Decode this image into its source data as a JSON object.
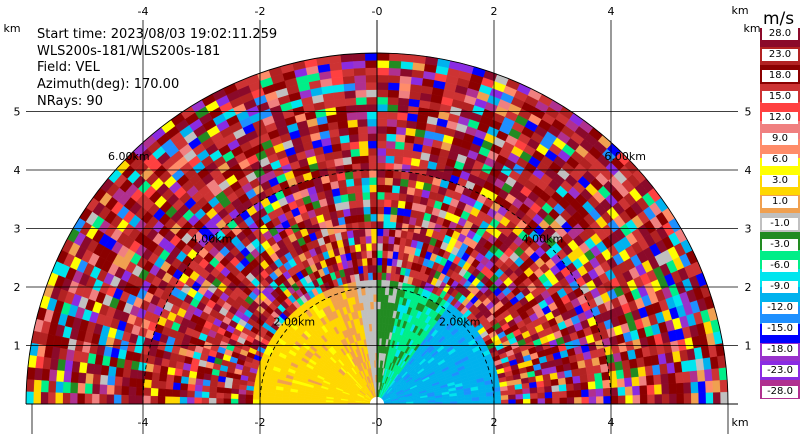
{
  "info": {
    "start_time": "Start time: 2023/08/03 19:02:11.259",
    "instrument": "WLS200s-181/WLS200s-181",
    "field": "Field: VEL",
    "azimuth": "Azimuth(deg): 170.00",
    "nrays": "NRays: 90"
  },
  "colorbar": {
    "unit": "m/s",
    "labels": [
      "28.0",
      "23.0",
      "18.0",
      "15.0",
      "12.0",
      "9.0",
      "6.0",
      "3.0",
      "1.0",
      "-1.0",
      "-3.0",
      "-6.0",
      "-9.0",
      "-12.0",
      "-15.0",
      "-18.0",
      "-23.0",
      "-28.0"
    ],
    "colors": [
      "#8b0a2a",
      "#b22222",
      "#8b0000",
      "#cd3333",
      "#ff4040",
      "#f08080",
      "#ff8c69",
      "#ffff00",
      "#ffd700",
      "#f0a050",
      "#c0c0c0",
      "#228b22",
      "#00ee88",
      "#00e5ee",
      "#00b2ee",
      "#1e90ff",
      "#0000ff",
      "#9932cc",
      "#8a2be2",
      "#b0308f"
    ]
  },
  "chart_data": {
    "type": "heatmap",
    "title": "",
    "xlabel": "",
    "ylabel": "",
    "x_unit_label": "km",
    "y_unit_label": "km",
    "xlim": [
      -6.0,
      6.0
    ],
    "ylim": [
      0.0,
      5.7
    ],
    "x_ticks": [
      -4,
      -2,
      0,
      2,
      4
    ],
    "x_tick_labels": [
      "-4",
      "-2",
      "-0",
      "2",
      "4"
    ],
    "y_ticks": [
      1,
      2,
      3,
      4,
      5
    ],
    "y_tick_labels": [
      "1",
      "2",
      "3",
      "4",
      "5"
    ],
    "grid": true,
    "range_rings_km": [
      2.0,
      4.0,
      6.0
    ],
    "range_ring_labels": [
      "2.00km",
      "4.00km",
      "6.00km"
    ],
    "max_range_km": 6.0,
    "nrays": 90,
    "azimuth_deg": 170.0,
    "colormap_levels_mps": [
      28.0,
      23.0,
      18.0,
      15.0,
      12.0,
      9.0,
      6.0,
      3.0,
      1.0,
      -1.0,
      -3.0,
      -6.0,
      -9.0,
      -12.0,
      -15.0,
      -18.0,
      -23.0,
      -28.0
    ]
  }
}
